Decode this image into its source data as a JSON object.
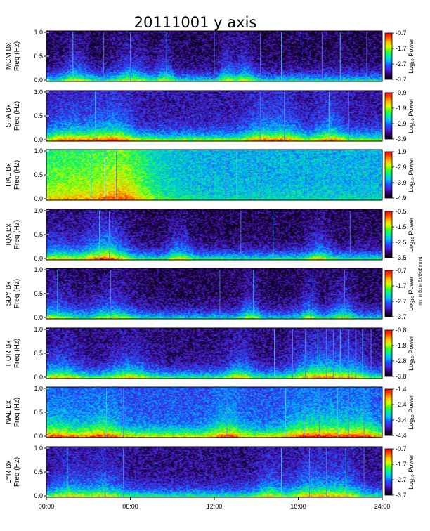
{
  "chart_data": {
    "type": "heatmap",
    "title": "20111001 y axis",
    "x_tick_labels": [
      "00:00",
      "06:00",
      "12:00",
      "18:00",
      "24:00"
    ],
    "x_ticks_hours": [
      0,
      6,
      12,
      18,
      24
    ],
    "xlim_hours": [
      0,
      24
    ],
    "ylim_hz": [
      0.0,
      1.0
    ],
    "y_tick_labels": [
      "0.0",
      "0.5",
      "1.0"
    ],
    "y_ticks_hz": [
      0.0,
      0.5,
      1.0
    ],
    "ylabel": "Freq (Hz)",
    "colorbar_label": "Log₁₀ Power",
    "side_note": "mkf in Bx in Bx/Bx/Bx mrd",
    "colormap": [
      "#000000",
      "#2a0060",
      "#4b1fd0",
      "#1a55ff",
      "#00b6ff",
      "#00e8a0",
      "#38ff20",
      "#d8ff00",
      "#ffc000",
      "#ff5000",
      "#ff0000"
    ],
    "panels": [
      {
        "station": "MCM Bx",
        "cbar_ticks": [
          "-0.7",
          "-1.7",
          "-2.7",
          "-3.7"
        ],
        "base": 0.35,
        "low": 1.2,
        "bursts": [
          {
            "h": 2.1,
            "s": 0.7
          },
          {
            "h": 6.05,
            "s": 0.9
          },
          {
            "h": 8.5,
            "s": 0.4
          },
          {
            "h": 12.9,
            "s": 0.4
          },
          {
            "h": 14.2,
            "s": 0.5
          }
        ],
        "lines": [
          1.9,
          4.1,
          6.0,
          8.6,
          12.0,
          15.3,
          16.8,
          18.2,
          19.7,
          21.0,
          22.9
        ]
      },
      {
        "station": "SPA Bx",
        "cbar_ticks": [
          "-0.9",
          "-1.9",
          "-2.9",
          "-3.9"
        ],
        "base": 0.6,
        "low": 1.5,
        "bursts": [
          {
            "h": 1.3,
            "s": 1.0
          },
          {
            "h": 3.6,
            "s": 1.0
          },
          {
            "h": 5.2,
            "s": 0.8
          },
          {
            "h": 15.3,
            "s": 0.8
          },
          {
            "h": 17.1,
            "s": 0.7
          },
          {
            "h": 20.3,
            "s": 0.7
          }
        ],
        "lines": [
          3.5,
          15.3,
          17.0,
          20.2,
          21.6
        ]
      },
      {
        "station": "HAL Bx",
        "cbar_ticks": [
          "-1.9",
          "-2.9",
          "-3.9",
          "-4.9"
        ],
        "base": 1.7,
        "low": 1.0,
        "bursts": [
          {
            "h": 0.8,
            "s": 2.2
          },
          {
            "h": 4.3,
            "s": 2.8
          },
          {
            "h": 5.5,
            "s": 1.2
          }
        ],
        "lines": [
          3.2,
          4.2,
          5.0,
          11.1,
          11.8,
          12.8,
          13.6,
          14.6,
          15.3,
          18.7,
          20.4,
          22.7
        ]
      },
      {
        "station": "IQA Bx",
        "cbar_ticks": [
          "-0.5",
          "-1.5",
          "-2.5",
          "-3.5"
        ],
        "base": 0.35,
        "low": 1.3,
        "bursts": [
          {
            "h": 0.6,
            "s": 1.0
          },
          {
            "h": 3.8,
            "s": 1.3
          },
          {
            "h": 4.4,
            "s": 1.0
          },
          {
            "h": 9.5,
            "s": 0.6
          },
          {
            "h": 19.5,
            "s": 0.6
          }
        ],
        "lines": [
          3.8,
          4.5,
          13.9,
          16.2,
          21.7
        ]
      },
      {
        "station": "SDY Bx",
        "cbar_ticks": [
          "-0.7",
          "-1.7",
          "-2.7",
          "-3.7"
        ],
        "base": 0.35,
        "low": 1.1,
        "bursts": [
          {
            "h": 0.4,
            "s": 1.2
          },
          {
            "h": 4.7,
            "s": 1.1
          },
          {
            "h": 14.6,
            "s": 0.5
          },
          {
            "h": 18.8,
            "s": 0.5
          },
          {
            "h": 21.2,
            "s": 0.6
          }
        ],
        "lines": [
          0.8,
          4.6,
          12.4,
          14.8,
          18.9,
          21.3
        ]
      },
      {
        "station": "HOR Bx",
        "cbar_ticks": [
          "-0.8",
          "-1.8",
          "-2.8",
          "-3.8"
        ],
        "base": 0.45,
        "low": 1.3,
        "bursts": [
          {
            "h": 1.0,
            "s": 1.0
          },
          {
            "h": 5.9,
            "s": 1.0
          },
          {
            "h": 13.8,
            "s": 0.7
          },
          {
            "h": 18.8,
            "s": 1.0
          },
          {
            "h": 20.2,
            "s": 0.9
          },
          {
            "h": 21.9,
            "s": 0.8
          }
        ],
        "lines": [
          16.3,
          17.6,
          18.5,
          19.4,
          20.0,
          20.5,
          21.0,
          21.6,
          22.1,
          22.6,
          23.2
        ]
      },
      {
        "station": "NAL Bx",
        "cbar_ticks": [
          "-1.4",
          "-2.4",
          "-3.4",
          "-4.4"
        ],
        "base": 1.0,
        "low": 1.4,
        "bursts": [
          {
            "h": 0.5,
            "s": 1.3
          },
          {
            "h": 4.0,
            "s": 1.0
          },
          {
            "h": 12.9,
            "s": 0.8
          },
          {
            "h": 18.4,
            "s": 1.0
          },
          {
            "h": 20.5,
            "s": 1.0
          },
          {
            "h": 22.6,
            "s": 0.8
          }
        ],
        "lines": [
          4.3,
          5.5,
          12.9,
          17.1,
          18.4,
          19.5,
          20.8,
          21.6,
          22.7
        ]
      },
      {
        "station": "LYR Bx",
        "cbar_ticks": [
          "-0.7",
          "-1.7",
          "-2.7",
          "-3.7"
        ],
        "base": 0.5,
        "low": 1.2,
        "bursts": [
          {
            "h": 1.5,
            "s": 0.9
          },
          {
            "h": 4.1,
            "s": 1.0
          },
          {
            "h": 16.0,
            "s": 0.7
          },
          {
            "h": 18.5,
            "s": 0.8
          },
          {
            "h": 20.0,
            "s": 0.8
          },
          {
            "h": 21.5,
            "s": 0.7
          }
        ],
        "lines": [
          1.5,
          4.2,
          5.5,
          16.8,
          18.8,
          20.0,
          21.4,
          22.7
        ]
      }
    ]
  }
}
